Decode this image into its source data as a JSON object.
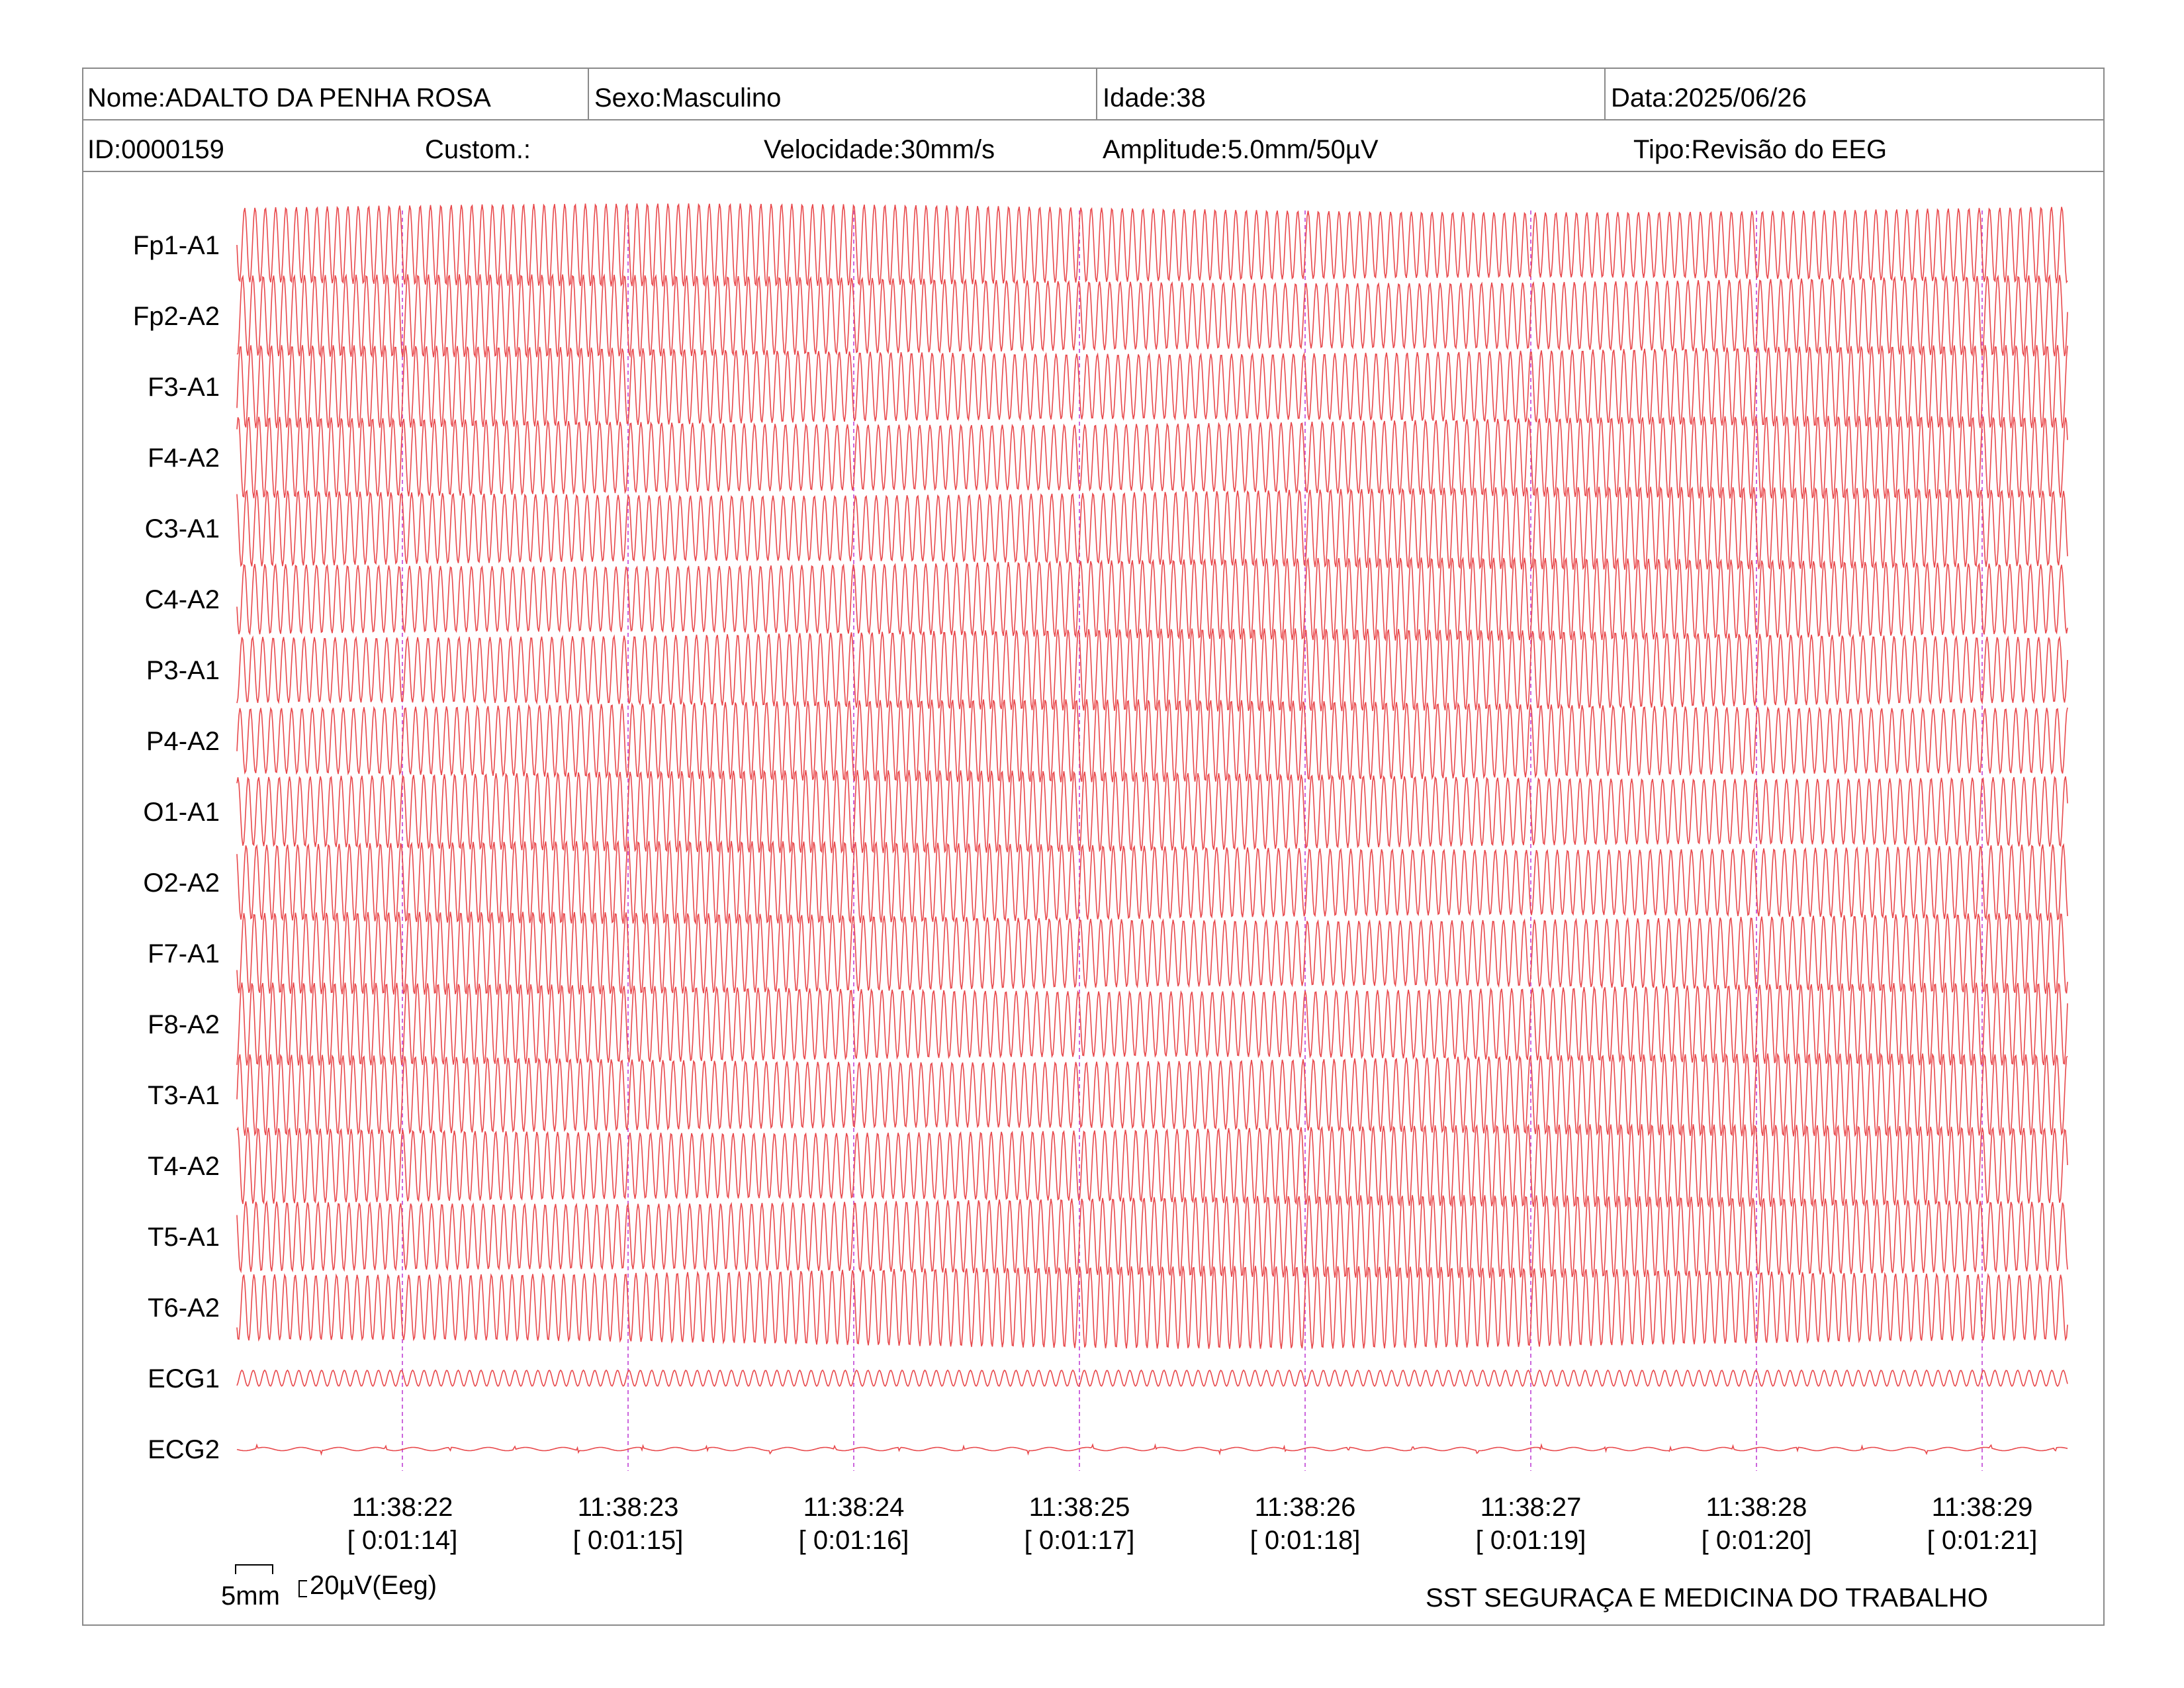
{
  "header": {
    "nome": "Nome:ADALTO DA PENHA ROSA",
    "sexo": "Sexo:Masculino",
    "idade": "Idade:38",
    "data": "Data:2025/06/26",
    "id": "ID:0000159",
    "custom": "Custom.:",
    "velocidade": "Velocidade:30mm/s",
    "amplitude": "Amplitude:5.0mm/50µV",
    "tipo": "Tipo:Revisão do EEG"
  },
  "channels": [
    "Fp1-A1",
    "Fp2-A2",
    "F3-A1",
    "F4-A2",
    "C3-A1",
    "C4-A2",
    "P3-A1",
    "P4-A2",
    "O1-A1",
    "O2-A2",
    "F7-A1",
    "F8-A2",
    "T3-A1",
    "T4-A2",
    "T5-A1",
    "T6-A2",
    "ECG1",
    "ECG2"
  ],
  "time_markers": [
    {
      "time": "11:38:22",
      "elapsed": "[ 0:01:14]"
    },
    {
      "time": "11:38:23",
      "elapsed": "[ 0:01:15]"
    },
    {
      "time": "11:38:24",
      "elapsed": "[ 0:01:16]"
    },
    {
      "time": "11:38:25",
      "elapsed": "[ 0:01:17]"
    },
    {
      "time": "11:38:26",
      "elapsed": "[ 0:01:18]"
    },
    {
      "time": "11:38:27",
      "elapsed": "[ 0:01:19]"
    },
    {
      "time": "11:38:28",
      "elapsed": "[ 0:01:20]"
    },
    {
      "time": "11:38:29",
      "elapsed": "[ 0:01:21]"
    }
  ],
  "scale": {
    "time_bar": "5mm",
    "amp_bar": "20µV(Eeg)"
  },
  "footer": {
    "company": "SST SEGURAÇA E MEDICINA DO TRABALHO"
  },
  "colors": {
    "trace": "#e8484b",
    "marker": "#cc66dd",
    "border": "#8a8a8a"
  }
}
